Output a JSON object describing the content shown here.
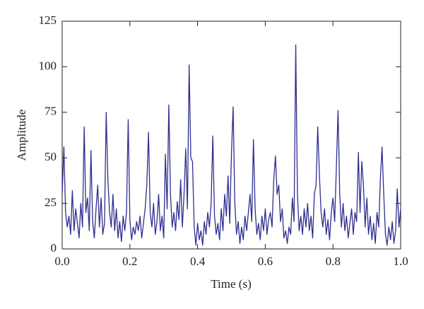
{
  "chart_data": {
    "type": "line",
    "xlabel": "Time (s)",
    "ylabel": "Amplitude",
    "xlim": [
      0,
      1
    ],
    "ylim": [
      0,
      125
    ],
    "xticks": [
      {
        "value": 0,
        "label": "0.0"
      },
      0.2,
      0.4,
      0.6,
      0.8,
      {
        "value": 1,
        "label": "1.0"
      }
    ],
    "yticks": [
      0,
      25,
      50,
      75,
      100,
      125
    ],
    "x": [
      0,
      0.005,
      0.01,
      0.015,
      0.02,
      0.025,
      0.03,
      0.035,
      0.04,
      0.045,
      0.05,
      0.055,
      0.06,
      0.065,
      0.07,
      0.075,
      0.08,
      0.085,
      0.09,
      0.095,
      0.1,
      0.105,
      0.11,
      0.115,
      0.12,
      0.125,
      0.13,
      0.135,
      0.14,
      0.145,
      0.15,
      0.155,
      0.16,
      0.165,
      0.17,
      0.175,
      0.18,
      0.185,
      0.19,
      0.195,
      0.2,
      0.205,
      0.21,
      0.215,
      0.22,
      0.225,
      0.23,
      0.235,
      0.24,
      0.245,
      0.25,
      0.255,
      0.26,
      0.265,
      0.27,
      0.275,
      0.28,
      0.285,
      0.29,
      0.295,
      0.3,
      0.305,
      0.31,
      0.315,
      0.32,
      0.325,
      0.33,
      0.335,
      0.34,
      0.345,
      0.35,
      0.355,
      0.36,
      0.365,
      0.37,
      0.375,
      0.38,
      0.385,
      0.39,
      0.395,
      0.4,
      0.405,
      0.41,
      0.415,
      0.42,
      0.425,
      0.43,
      0.435,
      0.44,
      0.445,
      0.45,
      0.455,
      0.46,
      0.465,
      0.47,
      0.475,
      0.48,
      0.485,
      0.49,
      0.495,
      0.5,
      0.505,
      0.51,
      0.515,
      0.52,
      0.525,
      0.53,
      0.535,
      0.54,
      0.545,
      0.55,
      0.555,
      0.56,
      0.565,
      0.57,
      0.575,
      0.58,
      0.585,
      0.59,
      0.595,
      0.6,
      0.605,
      0.61,
      0.615,
      0.62,
      0.625,
      0.63,
      0.635,
      0.64,
      0.645,
      0.65,
      0.655,
      0.66,
      0.665,
      0.67,
      0.675,
      0.68,
      0.685,
      0.69,
      0.695,
      0.7,
      0.705,
      0.71,
      0.715,
      0.72,
      0.725,
      0.73,
      0.735,
      0.74,
      0.745,
      0.75,
      0.755,
      0.76,
      0.765,
      0.77,
      0.775,
      0.78,
      0.785,
      0.79,
      0.795,
      0.8,
      0.805,
      0.81,
      0.815,
      0.82,
      0.825,
      0.83,
      0.835,
      0.84,
      0.845,
      0.85,
      0.855,
      0.86,
      0.865,
      0.87,
      0.875,
      0.88,
      0.885,
      0.89,
      0.895,
      0.9,
      0.905,
      0.91,
      0.915,
      0.92,
      0.925,
      0.93,
      0.935,
      0.94,
      0.945,
      0.95,
      0.955,
      0.96,
      0.965,
      0.97,
      0.975,
      0.98,
      0.985,
      0.99,
      0.995,
      1
    ],
    "series": [
      {
        "color": "#2e2e8f",
        "values": [
          30,
          56,
          20,
          12,
          18,
          8,
          32,
          10,
          22,
          14,
          6,
          25,
          12,
          67,
          20,
          28,
          10,
          54,
          15,
          6,
          22,
          35,
          12,
          28,
          8,
          14,
          75,
          38,
          20,
          12,
          30,
          10,
          22,
          6,
          15,
          4,
          18,
          10,
          20,
          71,
          16,
          5,
          12,
          8,
          15,
          10,
          18,
          6,
          14,
          22,
          35,
          64,
          20,
          12,
          25,
          8,
          15,
          30,
          10,
          18,
          6,
          52,
          22,
          79,
          30,
          12,
          20,
          10,
          26,
          16,
          38,
          12,
          30,
          55,
          22,
          101,
          50,
          48,
          12,
          2,
          14,
          5,
          10,
          2,
          15,
          8,
          20,
          12,
          25,
          62,
          18,
          8,
          14,
          5,
          22,
          10,
          30,
          18,
          40,
          14,
          52,
          78,
          25,
          8,
          15,
          3,
          12,
          5,
          18,
          10,
          20,
          30,
          15,
          60,
          22,
          8,
          14,
          5,
          18,
          10,
          22,
          8,
          16,
          20,
          12,
          38,
          51,
          30,
          35,
          15,
          22,
          6,
          10,
          3,
          12,
          8,
          28,
          15,
          112,
          30,
          10,
          18,
          8,
          22,
          12,
          25,
          10,
          18,
          6,
          30,
          35,
          67,
          40,
          20,
          12,
          22,
          8,
          16,
          5,
          20,
          28,
          15,
          45,
          76,
          30,
          12,
          25,
          10,
          18,
          6,
          14,
          22,
          8,
          20,
          15,
          53,
          20,
          48,
          35,
          12,
          28,
          8,
          18,
          5,
          14,
          3,
          20,
          12,
          38,
          56,
          30,
          8,
          2,
          12,
          5,
          15,
          3,
          10,
          33,
          12,
          22
        ]
      }
    ]
  }
}
